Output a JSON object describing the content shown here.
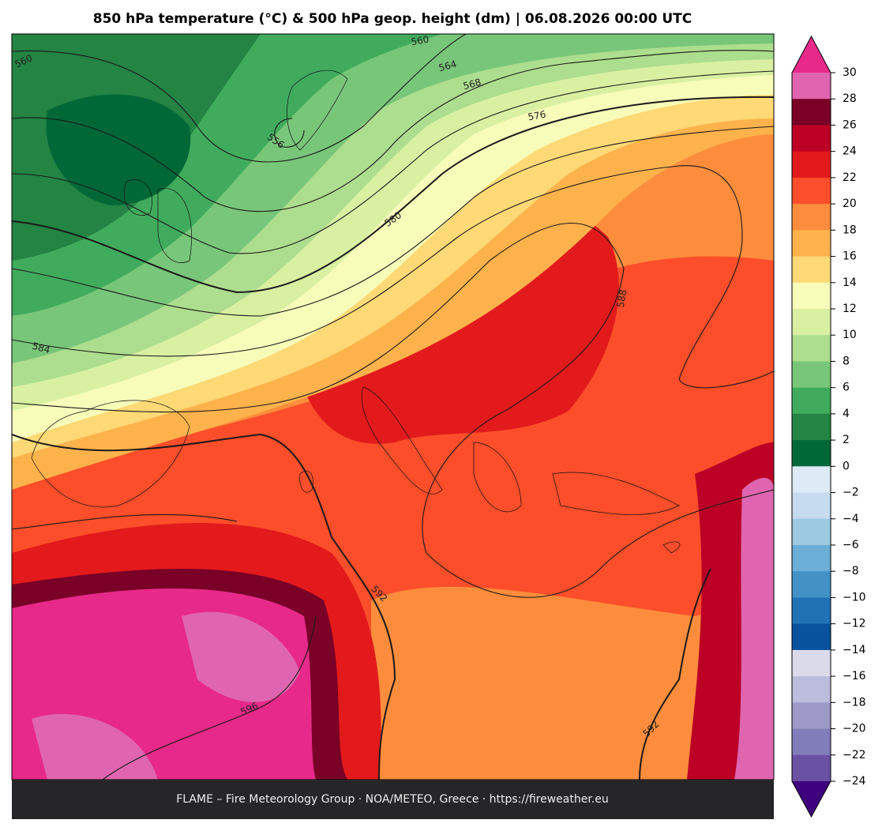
{
  "title": "850 hPa temperature (°C) & 500 hPa geop. height (dm)  |  06.08.2026 00:00 UTC",
  "footer": "FLAME – Fire Meteorology Group · NOA/METEO, Greece · https://fireweather.eu",
  "contour_labels": [
    560,
    560,
    564,
    568,
    576,
    556,
    580,
    584,
    588,
    592,
    596,
    592
  ],
  "colorbar": {
    "lim": [
      -24,
      30
    ],
    "ticks": [
      30,
      28,
      26,
      24,
      22,
      20,
      18,
      16,
      14,
      12,
      10,
      8,
      6,
      4,
      2,
      0,
      {
        "value": -2,
        "label": "−2"
      },
      {
        "value": -4,
        "label": "−4"
      },
      {
        "value": -6,
        "label": "−6"
      },
      {
        "value": -8,
        "label": "−8"
      },
      {
        "value": -10,
        "label": "−10"
      },
      {
        "value": -12,
        "label": "−12"
      },
      {
        "value": -14,
        "label": "−14"
      },
      {
        "value": -16,
        "label": "−16"
      },
      {
        "value": -18,
        "label": "−18"
      },
      {
        "value": -20,
        "label": "−20"
      },
      {
        "value": -22,
        "label": "−22"
      },
      {
        "value": -24,
        "label": "−24"
      }
    ],
    "colors": [
      "#df65b0",
      "#7a0027",
      "#bd0026",
      "#e31a1c",
      "#fc4e2a",
      "#fd8d3c",
      "#feb24c",
      "#fed976",
      "#f7fcb9",
      "#d9f0a3",
      "#addd8e",
      "#78c679",
      "#41ab5d",
      "#238443",
      "#006837",
      "#deebf7",
      "#c6dbef",
      "#9ecae1",
      "#6baed6",
      "#4292c6",
      "#2171b5",
      "#08519c",
      "#dadaeb",
      "#bcbddc",
      "#9e9ac8",
      "#807dba",
      "#6a51a3"
    ],
    "extend_colors": [
      "#e7298a",
      "#3f007d"
    ]
  }
}
